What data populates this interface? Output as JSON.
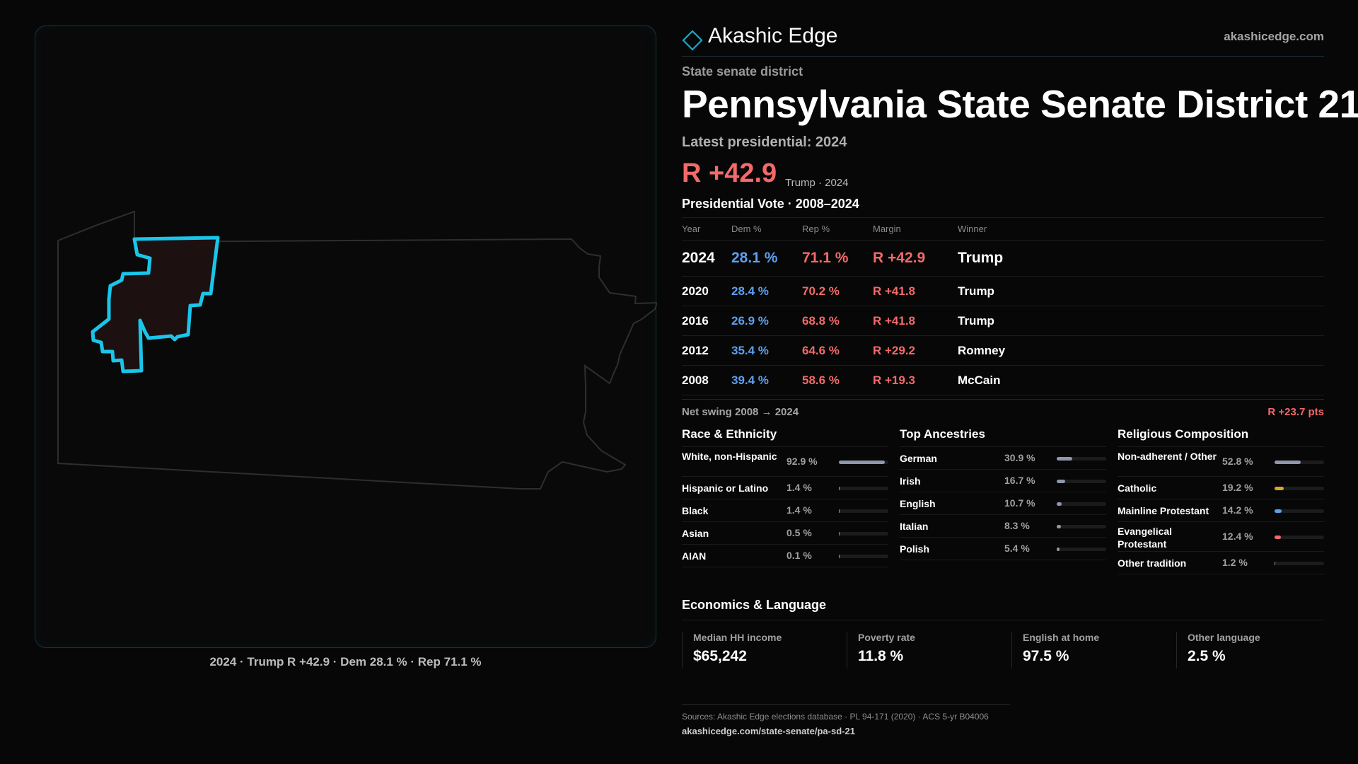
{
  "brand": {
    "name": "Akashic Edge",
    "url": "akashicedge.com",
    "accent": "#1aa7c9"
  },
  "kicker": "State senate district",
  "title": "Pennsylvania State Senate District 21",
  "latest_label": "Latest presidential: 2024",
  "headline_margin": "R +42.9",
  "headline_sub": "Trump · 2024",
  "vote_table": {
    "title": "Presidential Vote · 2008–2024",
    "headers": [
      "Year",
      "Dem %",
      "Rep %",
      "Margin",
      "Winner"
    ],
    "rows": [
      {
        "year": "2024",
        "dem": "28.1 %",
        "rep": "71.1 %",
        "margin": "R +42.9",
        "winner": "Trump"
      },
      {
        "year": "2020",
        "dem": "28.4 %",
        "rep": "70.2 %",
        "margin": "R +41.8",
        "winner": "Trump"
      },
      {
        "year": "2016",
        "dem": "26.9 %",
        "rep": "68.8 %",
        "margin": "R +41.8",
        "winner": "Trump"
      },
      {
        "year": "2012",
        "dem": "35.4 %",
        "rep": "64.6 %",
        "margin": "R +29.2",
        "winner": "Romney"
      },
      {
        "year": "2008",
        "dem": "39.4 %",
        "rep": "58.6 %",
        "margin": "R +19.3",
        "winner": "McCain"
      }
    ]
  },
  "swing": {
    "label": "Net swing 2008 → 2024",
    "value": "R +23.7 pts"
  },
  "race": {
    "title": "Race & Ethnicity",
    "rows": [
      {
        "label": "White, non-Hispanic",
        "pct": "92.9 %",
        "value": 92.9,
        "color": "#8e98a8"
      },
      {
        "label": "Hispanic or Latino",
        "pct": "1.4 %",
        "value": 1.4,
        "color": "#c9a227"
      },
      {
        "label": "Black",
        "pct": "1.4 %",
        "value": 1.4,
        "color": "#8e98a8"
      },
      {
        "label": "Asian",
        "pct": "0.5 %",
        "value": 0.5,
        "color": "#8e98a8"
      },
      {
        "label": "AIAN",
        "pct": "0.1 %",
        "value": 0.1,
        "color": "#8e98a8"
      }
    ]
  },
  "ancestry": {
    "title": "Top Ancestries",
    "rows": [
      {
        "label": "German",
        "pct": "30.9 %",
        "value": 30.9,
        "color": "#8e98a8"
      },
      {
        "label": "Irish",
        "pct": "16.7 %",
        "value": 16.7,
        "color": "#8e98a8"
      },
      {
        "label": "English",
        "pct": "10.7 %",
        "value": 10.7,
        "color": "#8e98a8"
      },
      {
        "label": "Italian",
        "pct": "8.3 %",
        "value": 8.3,
        "color": "#8e98a8"
      },
      {
        "label": "Polish",
        "pct": "5.4 %",
        "value": 5.4,
        "color": "#8e98a8"
      }
    ]
  },
  "religion": {
    "title": "Religious Composition",
    "rows": [
      {
        "label": "Non-adherent / Other",
        "pct": "52.8 %",
        "value": 52.8,
        "color": "#8e98a8"
      },
      {
        "label": "Catholic",
        "pct": "19.2 %",
        "value": 19.2,
        "color": "#d4a72c"
      },
      {
        "label": "Mainline Protestant",
        "pct": "14.2 %",
        "value": 14.2,
        "color": "#5ea0ee"
      },
      {
        "label": "Evangelical Protestant",
        "pct": "12.4 %",
        "value": 12.4,
        "color": "#f36a6a"
      },
      {
        "label": "Other tradition",
        "pct": "1.2 %",
        "value": 1.2,
        "color": "#8e98a8"
      }
    ]
  },
  "economics": {
    "title": "Economics & Language",
    "cells": [
      {
        "label": "Median HH income",
        "value": "$65,242"
      },
      {
        "label": "Poverty rate",
        "value": "11.8 %"
      },
      {
        "label": "English at home",
        "value": "97.5 %"
      },
      {
        "label": "Other language",
        "value": "2.5 %"
      }
    ]
  },
  "map_caption": "2024 · Trump R +42.9 · Dem 28.1 % · Rep 71.1 %",
  "sources": {
    "line1": "Sources: Akashic Edge elections database · PL 94-171 (2020) · ACS 5-yr B04006",
    "line2": "akashicedge.com/state-senate/pa-sd-21"
  },
  "colors": {
    "dem": "#5ea0ee",
    "rep": "#f36a6a",
    "district_outline": "#19c6ea",
    "district_fill": "#1c1011"
  }
}
